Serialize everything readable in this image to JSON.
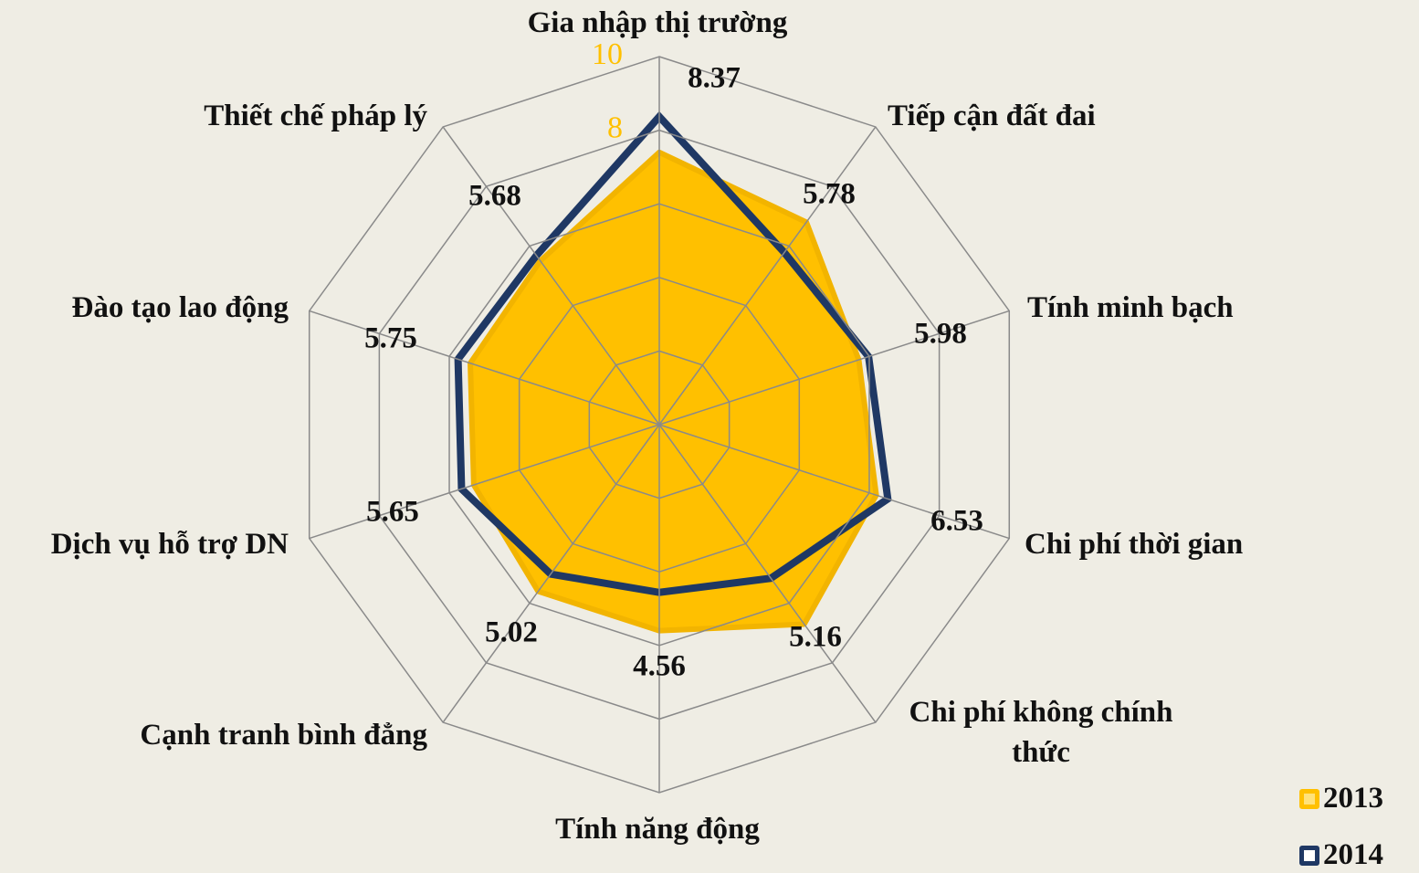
{
  "chart_data": {
    "type": "radar",
    "categories": [
      "Gia nhập thị trường",
      "Tiếp cận đất đai",
      "Tính minh bạch",
      "Chi phí thời gian",
      "Chi phí không chính thức",
      "Tính năng động",
      "Cạnh tranh bình đẳng",
      "Dịch vụ hỗ trợ DN",
      "Đào tạo lao động",
      "Thiết chế pháp lý"
    ],
    "series": [
      {
        "name": "2013",
        "color": "#ffc000",
        "values": [
          7.4,
          6.8,
          5.7,
          6.2,
          6.7,
          5.6,
          5.6,
          5.3,
          5.4,
          5.5
        ]
      },
      {
        "name": "2014",
        "color": "#1f3864",
        "values": [
          8.37,
          5.78,
          5.98,
          6.53,
          5.16,
          4.56,
          5.02,
          5.65,
          5.75,
          5.68
        ]
      }
    ],
    "ylim": [
      0,
      10
    ],
    "yticks": [
      2,
      4,
      6,
      8,
      10
    ],
    "tick_color": "#ffc000",
    "grid": true,
    "legend": "lower right"
  }
}
